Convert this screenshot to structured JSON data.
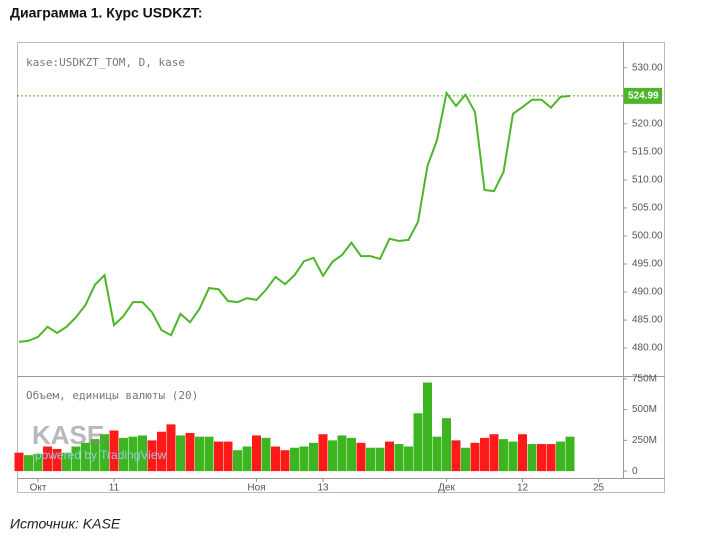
{
  "title": "Диаграмма 1. Курс USDKZT:",
  "source": "Источник: KASE",
  "watermark": {
    "logo": "KASE",
    "text": "powered by TradingView"
  },
  "chart_data": [
    {
      "type": "line",
      "categories": [
        null,
        null,
        "Окт",
        null,
        null,
        null,
        null,
        null,
        null,
        null,
        "11",
        null,
        null,
        null,
        null,
        null,
        null,
        null,
        null,
        null,
        null,
        null,
        null,
        null,
        null,
        "Ноя",
        null,
        null,
        null,
        null,
        null,
        null,
        "13",
        null,
        null,
        null,
        null,
        null,
        null,
        null,
        null,
        null,
        null,
        null,
        null,
        "Дек",
        null,
        null,
        null,
        null,
        null,
        null,
        null,
        "12",
        null,
        null,
        null,
        null,
        null,
        null,
        null,
        "25"
      ],
      "series": [
        {
          "name": "kase:USDKZT_TOM, D, kase",
          "color": "#4cb52a",
          "values": [
            481.1,
            481.3,
            482.0,
            483.8,
            482.7,
            483.8,
            485.5,
            487.7,
            491.3,
            493.0,
            484.1,
            485.7,
            488.2,
            488.2,
            486.4,
            483.2,
            482.3,
            486.1,
            484.6,
            487.0,
            490.7,
            490.5,
            488.4,
            488.2,
            488.9,
            488.6,
            490.4,
            492.7,
            491.4,
            493.0,
            495.5,
            496.1,
            492.9,
            495.4,
            496.6,
            498.8,
            496.4,
            496.4,
            495.9,
            499.5,
            499.1,
            499.3,
            502.5,
            512.5,
            517.1,
            525.5,
            523.2,
            525.2,
            522.1,
            508.2,
            508.0,
            511.4,
            521.8,
            523.0,
            524.3,
            524.3,
            522.9,
            524.8,
            524.99,
            null,
            null,
            null
          ]
        }
      ],
      "last_value": 524.99,
      "ylim": [
        475.2,
        534.6
      ],
      "yticks": [
        {
          "value": 480,
          "label": "480.00"
        },
        {
          "value": 485,
          "label": "485.00"
        },
        {
          "value": 490,
          "label": "490.00"
        },
        {
          "value": 495,
          "label": "495.00"
        },
        {
          "value": 500,
          "label": "500.00"
        },
        {
          "value": 505,
          "label": "505.00"
        },
        {
          "value": 510,
          "label": "510.00"
        },
        {
          "value": 515,
          "label": "515.00"
        },
        {
          "value": 520,
          "label": "520.00"
        },
        {
          "value": 525,
          "label": "525.00"
        },
        {
          "value": 530,
          "label": "530.00"
        }
      ]
    },
    {
      "type": "bar",
      "categories": [
        null,
        null,
        "Окт",
        null,
        null,
        null,
        null,
        null,
        null,
        null,
        "11",
        null,
        null,
        null,
        null,
        null,
        null,
        null,
        null,
        null,
        null,
        null,
        null,
        null,
        null,
        "Ноя",
        null,
        null,
        null,
        null,
        null,
        null,
        "13",
        null,
        null,
        null,
        null,
        null,
        null,
        null,
        null,
        null,
        null,
        null,
        null,
        "Дек",
        null,
        null,
        null,
        null,
        null,
        null,
        null,
        "12",
        null,
        null,
        null,
        null,
        null,
        null,
        null,
        "25"
      ],
      "series": [
        {
          "name": "Объем, единицы валюты (20)",
          "values": [
            150,
            130,
            140,
            200,
            180,
            150,
            200,
            230,
            260,
            300,
            330,
            270,
            280,
            290,
            250,
            320,
            380,
            290,
            310,
            280,
            280,
            240,
            240,
            170,
            200,
            290,
            270,
            200,
            170,
            190,
            200,
            230,
            300,
            250,
            290,
            270,
            230,
            190,
            190,
            240,
            220,
            200,
            470,
            720,
            280,
            430,
            250,
            190,
            230,
            270,
            300,
            260,
            240,
            300,
            220,
            220,
            220,
            240,
            280,
            null,
            null,
            null
          ],
          "colors": [
            "#ff1a1a",
            "#3cb521",
            "#3cb521",
            "#ff1a1a",
            "#ff1a1a",
            "#3cb521",
            "#3cb521",
            "#3cb521",
            "#3cb521",
            "#3cb521",
            "#ff1a1a",
            "#3cb521",
            "#3cb521",
            "#3cb521",
            "#ff1a1a",
            "#ff1a1a",
            "#ff1a1a",
            "#3cb521",
            "#ff1a1a",
            "#3cb521",
            "#3cb521",
            "#ff1a1a",
            "#ff1a1a",
            "#3cb521",
            "#3cb521",
            "#ff1a1a",
            "#3cb521",
            "#ff1a1a",
            "#ff1a1a",
            "#3cb521",
            "#3cb521",
            "#3cb521",
            "#ff1a1a",
            "#3cb521",
            "#3cb521",
            "#3cb521",
            "#ff1a1a",
            "#3cb521",
            "#3cb521",
            "#ff1a1a",
            "#3cb521",
            "#3cb521",
            "#3cb521",
            "#3cb521",
            "#3cb521",
            "#3cb521",
            "#ff1a1a",
            "#3cb521",
            "#ff1a1a",
            "#ff1a1a",
            "#ff1a1a",
            "#3cb521",
            "#3cb521",
            "#ff1a1a",
            "#3cb521",
            "#ff1a1a",
            "#ff1a1a",
            "#3cb521",
            "#3cb521",
            null,
            null,
            null
          ]
        }
      ],
      "ylim": [
        -56,
        765
      ],
      "yticks": [
        0,
        {
          "value": 250,
          "label": "250M"
        },
        {
          "value": 500,
          "label": "500M"
        },
        {
          "value": 750,
          "label": "750M"
        }
      ]
    }
  ]
}
